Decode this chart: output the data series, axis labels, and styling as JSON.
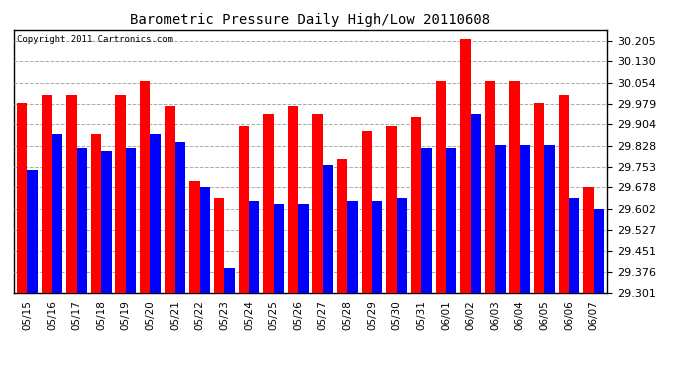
{
  "title": "Barometric Pressure Daily High/Low 20110608",
  "copyright": "Copyright 2011 Cartronics.com",
  "dates": [
    "05/15",
    "05/16",
    "05/17",
    "05/18",
    "05/19",
    "05/20",
    "05/21",
    "05/22",
    "05/23",
    "05/24",
    "05/25",
    "05/26",
    "05/27",
    "05/28",
    "05/29",
    "05/30",
    "05/31",
    "06/01",
    "06/02",
    "06/03",
    "06/04",
    "06/05",
    "06/06",
    "06/07"
  ],
  "highs": [
    29.98,
    30.01,
    30.01,
    29.87,
    30.01,
    30.06,
    29.97,
    29.7,
    29.64,
    29.9,
    29.94,
    29.97,
    29.94,
    29.78,
    29.88,
    29.9,
    29.93,
    30.06,
    30.21,
    30.06,
    30.06,
    29.98,
    30.01,
    29.68
  ],
  "lows": [
    29.74,
    29.87,
    29.82,
    29.81,
    29.82,
    29.87,
    29.84,
    29.68,
    29.39,
    29.63,
    29.62,
    29.62,
    29.76,
    29.63,
    29.63,
    29.64,
    29.82,
    29.82,
    29.94,
    29.83,
    29.83,
    29.83,
    29.64,
    29.6
  ],
  "high_color": "#ff0000",
  "low_color": "#0000ff",
  "bg_color": "#ffffff",
  "plot_bg_color": "#ffffff",
  "grid_color": "#aaaaaa",
  "yticks": [
    29.301,
    29.376,
    29.451,
    29.527,
    29.602,
    29.678,
    29.753,
    29.828,
    29.904,
    29.979,
    30.054,
    30.13,
    30.205
  ],
  "ymin": 29.301,
  "ymax": 30.243,
  "bar_width": 0.42
}
